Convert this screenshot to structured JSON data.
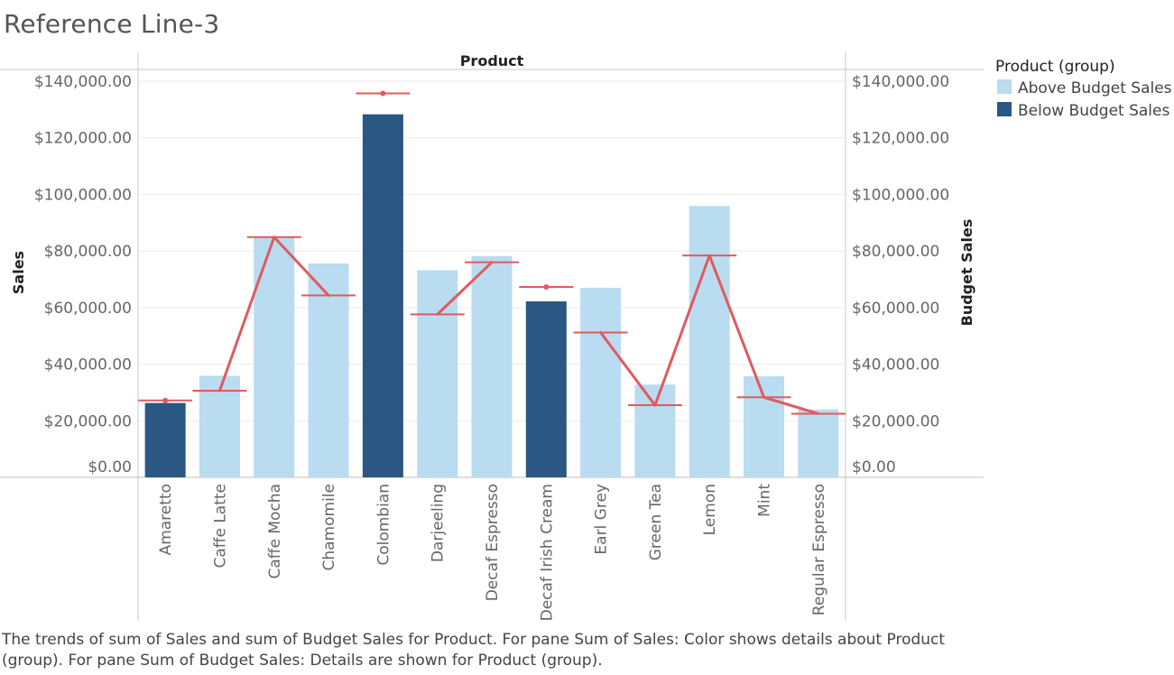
{
  "title": "Reference Line-3",
  "caption": "The trends of sum of Sales and sum of Budget Sales for Product.  For pane Sum of Sales:  Color shows details about Product (group).  For pane Sum of Budget Sales:  Details are shown for Product (group).",
  "colors": {
    "above": "#b9dcf0",
    "below": "#2a5783",
    "budget": "#e05a5f",
    "grid": "#ebebeb",
    "axis": "#c8c8c8"
  },
  "chart_data": {
    "type": "bar",
    "column_header": "Product",
    "ylabel_left": "Sales",
    "ylabel_right": "Budget Sales",
    "ylim": [
      0,
      140000
    ],
    "ytick_values": [
      0,
      20000,
      40000,
      60000,
      80000,
      100000,
      120000,
      140000
    ],
    "ytick_labels": [
      "$0.00",
      "$20,000.00",
      "$40,000.00",
      "$60,000.00",
      "$80,000.00",
      "$100,000.00",
      "$120,000.00",
      "$140,000.00"
    ],
    "categories": [
      "Amaretto",
      "Caffe Latte",
      "Caffe Mocha",
      "Chamomile",
      "Colombian",
      "Darjeeling",
      "Decaf Espresso",
      "Decaf Irish Cream",
      "Earl Grey",
      "Green Tea",
      "Lemon",
      "Mint",
      "Regular Espresso"
    ],
    "series": [
      {
        "name": "Sales",
        "values": [
          26300,
          35900,
          84900,
          75600,
          128300,
          73200,
          78200,
          62200,
          67000,
          32800,
          95900,
          35700,
          24000
        ],
        "group": [
          "Below Budget Sales",
          "Above Budget Sales",
          "Above Budget Sales",
          "Above Budget Sales",
          "Below Budget Sales",
          "Above Budget Sales",
          "Above Budget Sales",
          "Below Budget Sales",
          "Above Budget Sales",
          "Above Budget Sales",
          "Above Budget Sales",
          "Above Budget Sales",
          "Above Budget Sales"
        ]
      },
      {
        "name": "Budget Sales",
        "values": [
          27200,
          30600,
          84900,
          64300,
          135700,
          57600,
          76000,
          67300,
          51200,
          25500,
          78400,
          28300,
          22500
        ]
      }
    ],
    "legend": {
      "title": "Product (group)",
      "position": "top-right",
      "items": [
        {
          "label": "Above Budget Sales",
          "color": "#b9dcf0"
        },
        {
          "label": "Below Budget Sales",
          "color": "#2a5783"
        }
      ]
    },
    "grid": true
  }
}
